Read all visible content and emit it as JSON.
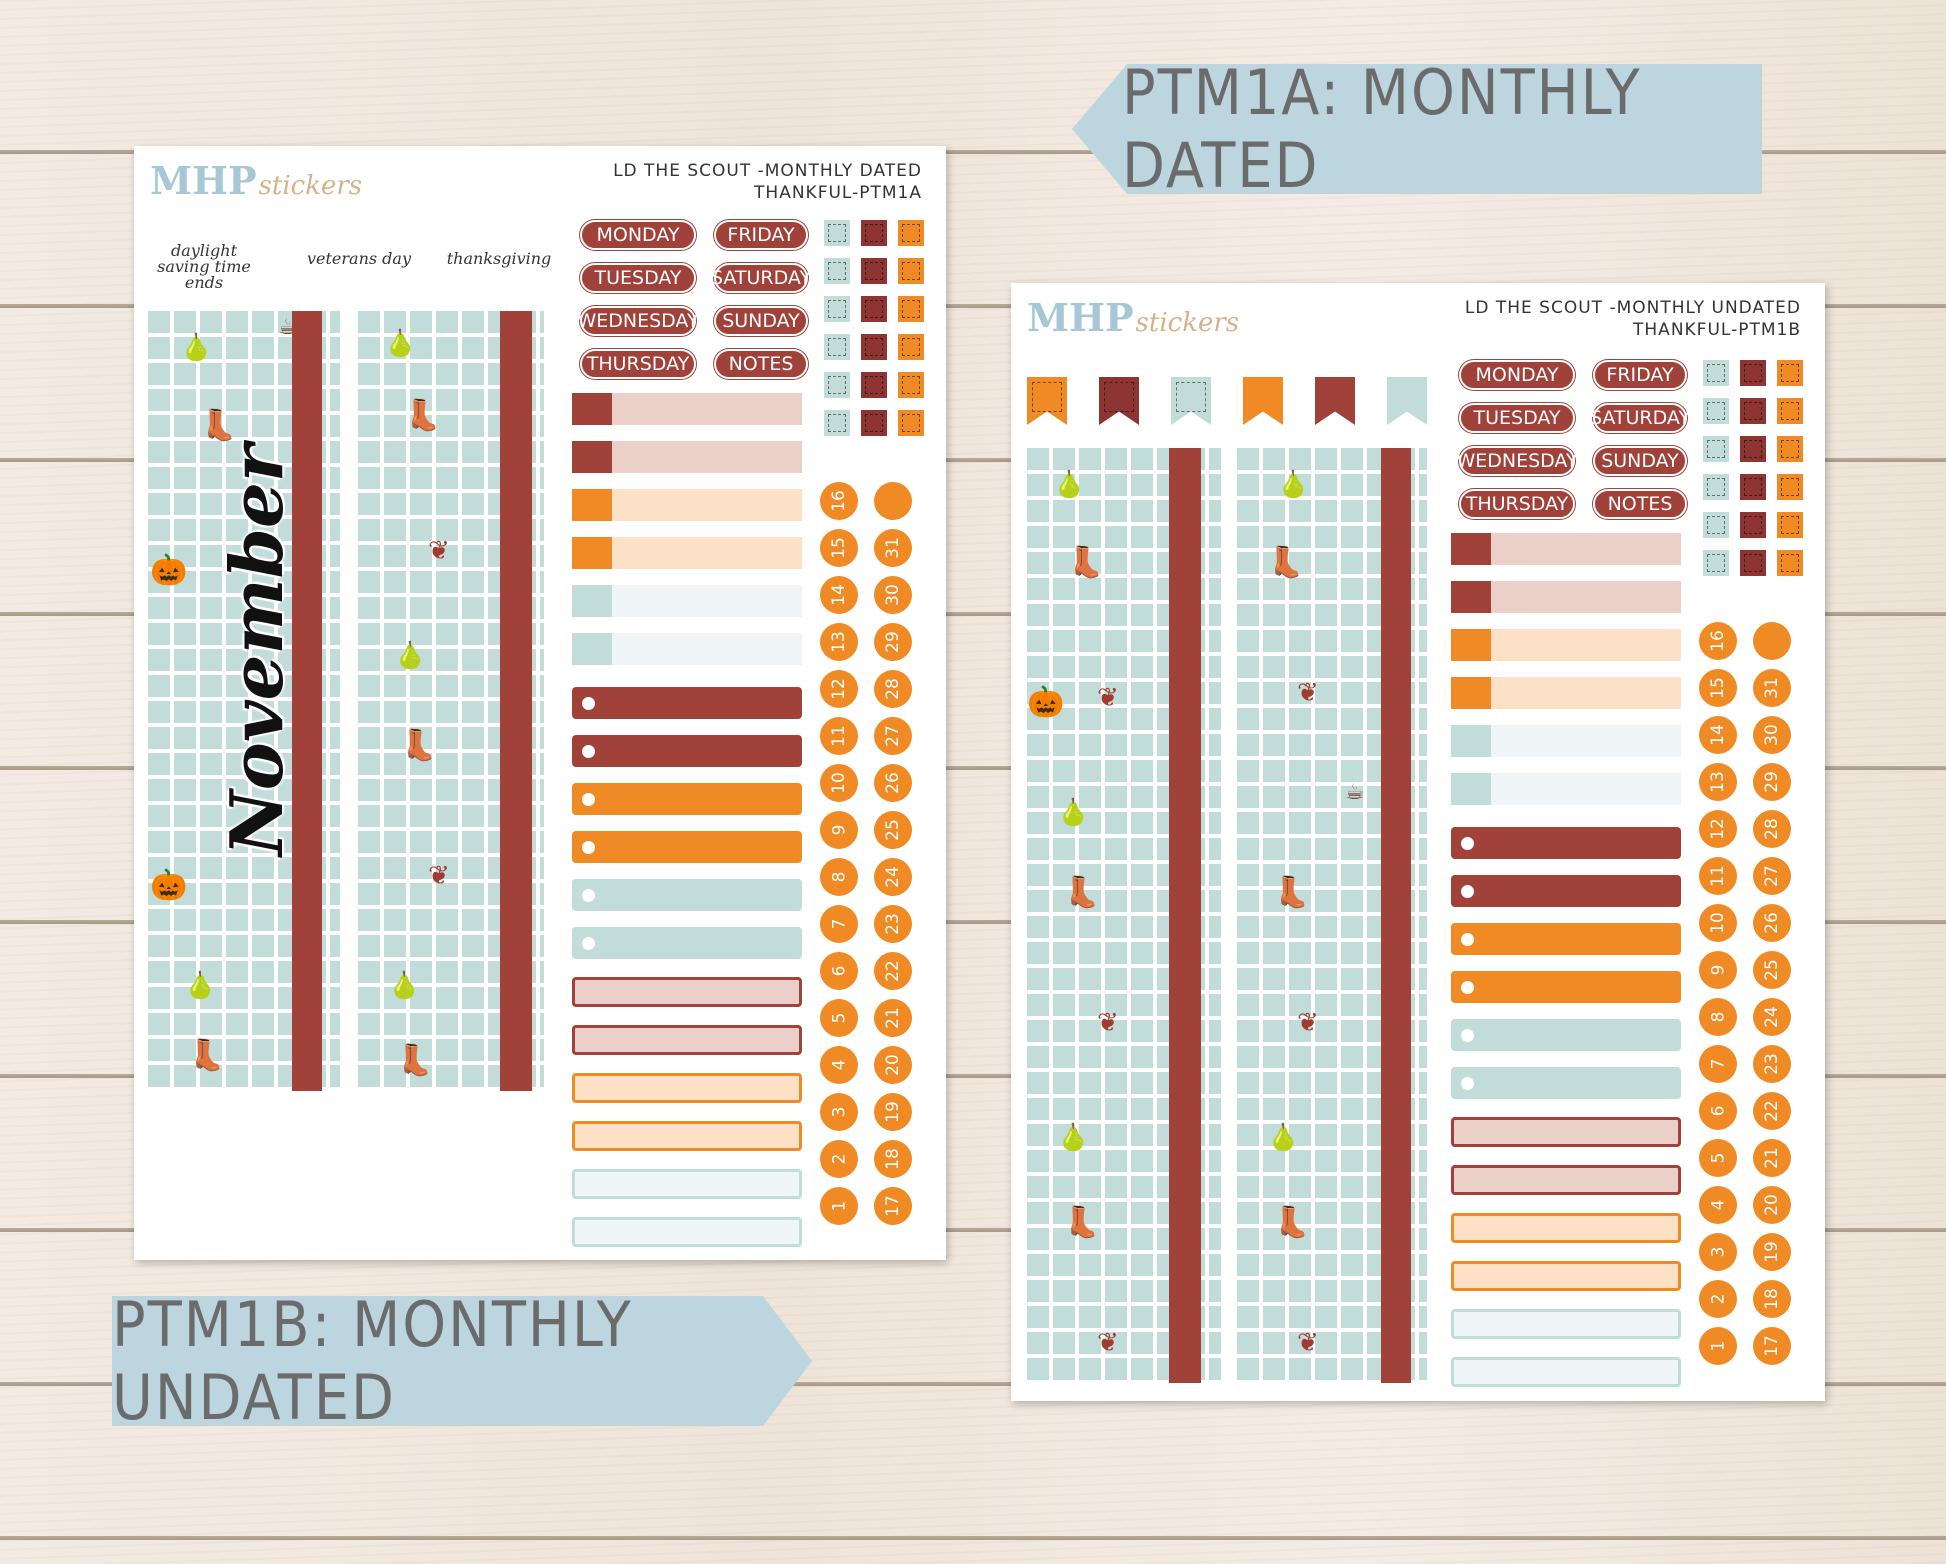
{
  "banners": {
    "top": "PTM1A: MONTHLY DATED",
    "bottom": "PTM1B: MONTHLY UNDATED"
  },
  "sheets": [
    {
      "logo_main": "MHP",
      "logo_sub": "stickers",
      "title_line1": "LD THE SCOUT -MONTHLY DATED",
      "title_line2": "THANKFUL-PTM1A",
      "holidays": [
        "daylight saving time ends",
        "veterans day",
        "thanksgiving"
      ],
      "month_script": "November"
    },
    {
      "logo_main": "MHP",
      "logo_sub": "stickers",
      "title_line1": "LD THE SCOUT -MONTHLY UNDATED",
      "title_line2": "THANKFUL-PTM1B"
    }
  ],
  "days": [
    "MONDAY",
    "FRIDAY",
    "TUESDAY",
    "SATURDAY",
    "WEDNESDAY",
    "SUNDAY",
    "THURSDAY",
    "NOTES"
  ],
  "numbers_col1": [
    "16",
    "15",
    "14",
    "13",
    "12",
    "11",
    "10",
    "9",
    "8",
    "7",
    "6",
    "5",
    "4",
    "3",
    "2",
    "1"
  ],
  "numbers_col2": [
    "",
    "31",
    "30",
    "29",
    "28",
    "27",
    "26",
    "25",
    "24",
    "23",
    "22",
    "21",
    "20",
    "19",
    "18",
    "17"
  ],
  "colors": {
    "maroon": "#a0413a",
    "orange": "#ef8a24",
    "mint": "#c2dcd9",
    "banner": "#bcd5df"
  }
}
